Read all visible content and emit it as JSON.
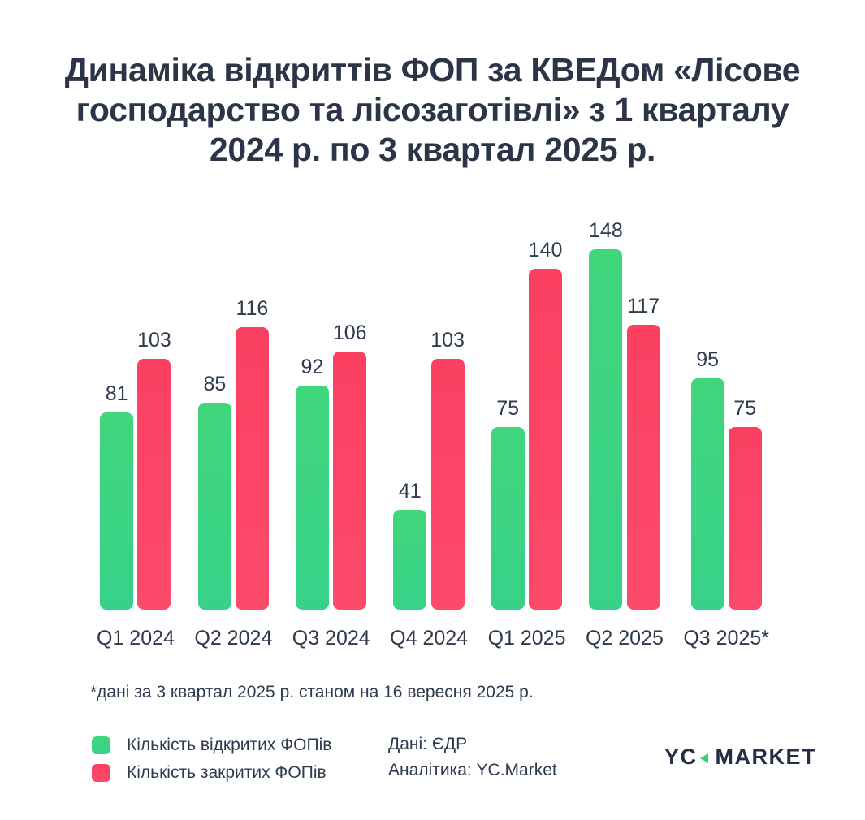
{
  "title_lines": [
    "Динаміка відкриттів ФОП за КВЕДом «Лісове",
    "господарство та лісозаготівлі» з 1 кварталу",
    "2024 р. по 3 квартал 2025 р."
  ],
  "chart_data": {
    "type": "bar",
    "title": "Динаміка відкриттів ФОП за КВЕДом «Лісове господарство та лісозаготівлі» з 1 кварталу 2024 р. по 3 квартал 2025 р.",
    "categories": [
      "Q1 2024",
      "Q2 2024",
      "Q3 2024",
      "Q4 2024",
      "Q1 2025",
      "Q2 2025",
      "Q3 2025*"
    ],
    "series": [
      {
        "name": "Кількість відкритих ФОПів",
        "color": "#40D67C",
        "color2": "#37D289",
        "values": [
          81,
          85,
          92,
          41,
          75,
          148,
          95
        ]
      },
      {
        "name": "Кількість закритих ФОПів",
        "color": "#FB4062",
        "color2": "#FC4A6B",
        "values": [
          103,
          116,
          106,
          103,
          140,
          117,
          75
        ]
      }
    ],
    "ylim": [
      0,
      163
    ],
    "grid": false,
    "data_labels": true,
    "legend_position": "bottom-left",
    "footnote": "*дані за 3 квартал 2025 р. станом на 16 вересня 2025 р."
  },
  "credits": {
    "source": "Дані: ЄДР",
    "analytics": "Аналітика: YC.Market"
  },
  "logo": {
    "yc": "YC",
    "market": "MARKET",
    "accent_color": "#2FD27D"
  },
  "colors": {
    "text": "#2C3548",
    "background": "#FFFFFF",
    "opened_bar": "#3CD381",
    "closed_bar": "#FB4566"
  }
}
